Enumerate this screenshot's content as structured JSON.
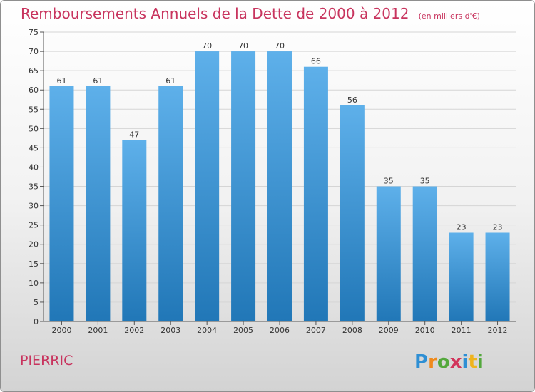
{
  "title": "Remboursements Annuels de la Dette de 2000 à 2012",
  "subtitle": "(en milliers d'€)",
  "city": "PIERRIC",
  "logo_text": "Proxiti",
  "colors": {
    "bar_top": "#5eb0ea",
    "bar_bottom": "#2177b7",
    "title": "#c8345e"
  },
  "chart_data": {
    "type": "bar",
    "title": "Remboursements Annuels de la Dette de 2000 à 2012",
    "subtitle": "(en milliers d'€)",
    "categories": [
      "2000",
      "2001",
      "2002",
      "2003",
      "2004",
      "2005",
      "2006",
      "2007",
      "2008",
      "2009",
      "2010",
      "2011",
      "2012"
    ],
    "values": [
      61,
      61,
      47,
      61,
      70,
      70,
      70,
      66,
      56,
      35,
      35,
      23,
      23
    ],
    "yticks": [
      0,
      5,
      10,
      15,
      20,
      25,
      30,
      35,
      40,
      45,
      50,
      55,
      60,
      65,
      70,
      75
    ],
    "ylim": [
      0,
      75
    ],
    "grid": true,
    "legend": "none"
  }
}
